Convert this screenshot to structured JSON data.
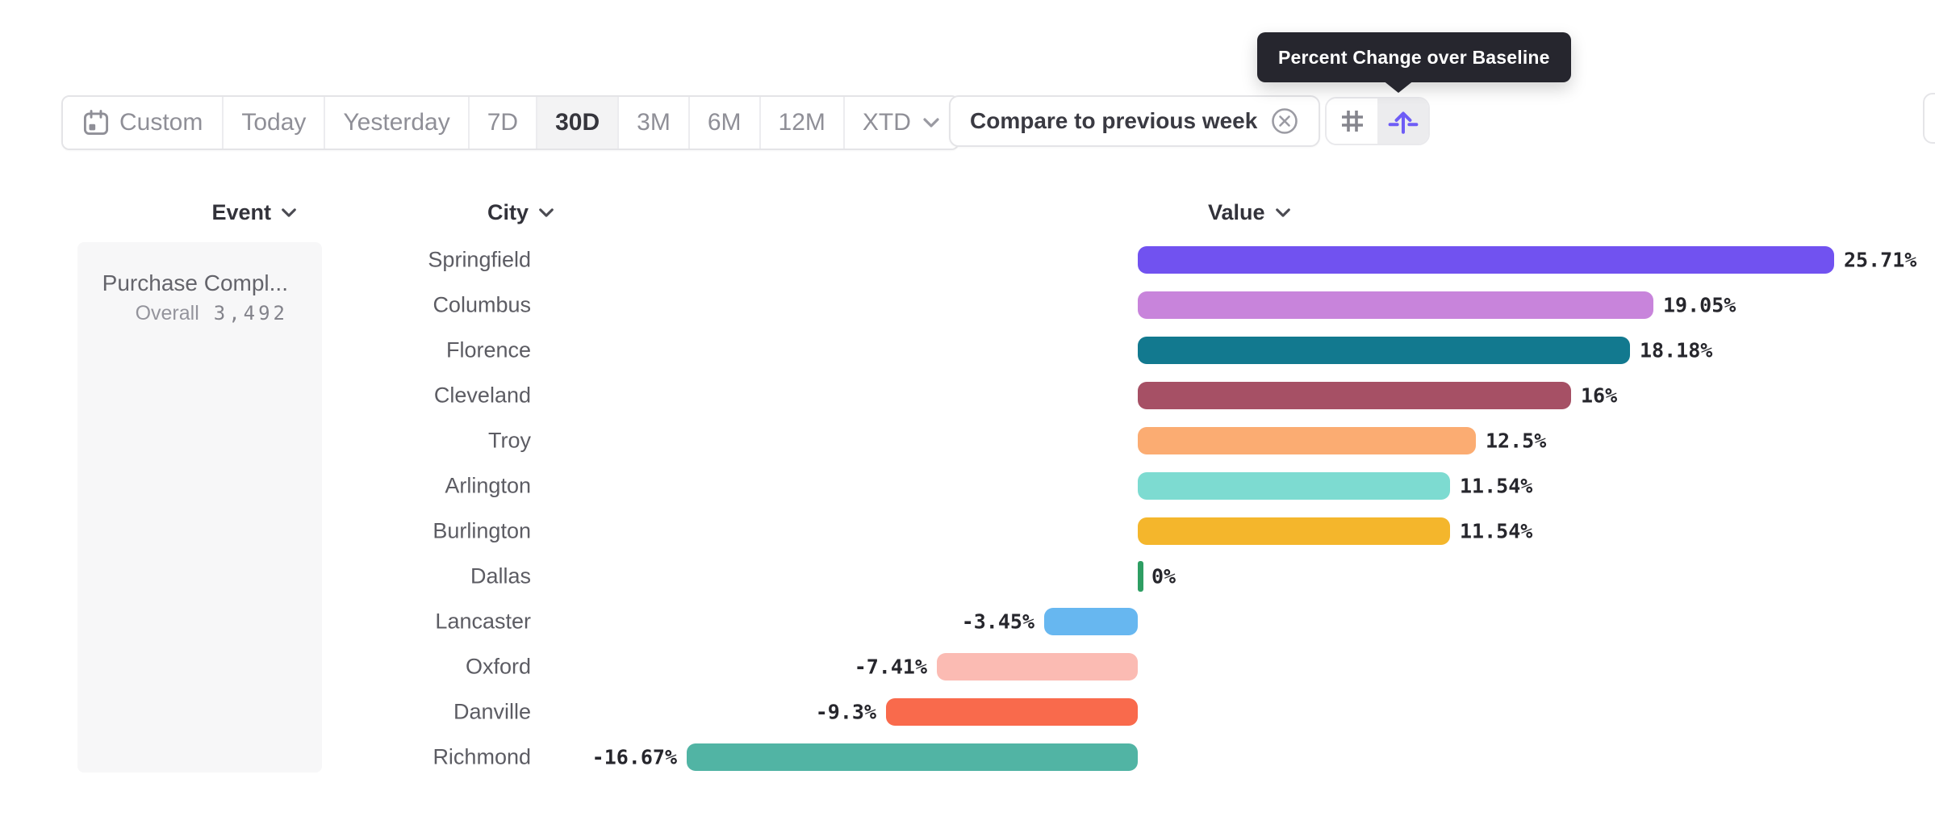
{
  "tooltip": {
    "text": "Percent Change over Baseline"
  },
  "toolbar": {
    "date_ranges": [
      {
        "label": "Custom",
        "icon": "calendar-icon",
        "selected": false,
        "chevron": false
      },
      {
        "label": "Today",
        "selected": false,
        "chevron": false
      },
      {
        "label": "Yesterday",
        "selected": false,
        "chevron": false
      },
      {
        "label": "7D",
        "selected": false,
        "chevron": false
      },
      {
        "label": "30D",
        "selected": true,
        "chevron": false
      },
      {
        "label": "3M",
        "selected": false,
        "chevron": false
      },
      {
        "label": "6M",
        "selected": false,
        "chevron": false
      },
      {
        "label": "12M",
        "selected": false,
        "chevron": false
      },
      {
        "label": "XTD",
        "selected": false,
        "chevron": true
      }
    ],
    "compare_label": "Compare to previous week",
    "compare_remove_icon": "x-circle-icon",
    "view_toggle": {
      "absolute_icon": "hash-icon",
      "baseline_icon": "arrow-up-baseline-icon",
      "selected": "baseline"
    }
  },
  "columns": {
    "event": "Event",
    "city": "City",
    "value": "Value"
  },
  "event_panel": {
    "event_name": "Purchase Compl...",
    "overall_label": "Overall",
    "overall_value": "3,492"
  },
  "chart_data": {
    "type": "bar",
    "orientation": "horizontal",
    "title": "Percent Change over Baseline",
    "unit": "%",
    "categories": [
      "Springfield",
      "Columbus",
      "Florence",
      "Cleveland",
      "Troy",
      "Arlington",
      "Burlington",
      "Dallas",
      "Lancaster",
      "Oxford",
      "Danville",
      "Richmond"
    ],
    "values": [
      25.71,
      19.05,
      18.18,
      16,
      12.5,
      11.54,
      11.54,
      0,
      -3.45,
      -7.41,
      -9.3,
      -16.67
    ],
    "labels": [
      "25.71%",
      "19.05%",
      "18.18%",
      "16%",
      "12.5%",
      "11.54%",
      "11.54%",
      "0%",
      "-3.45%",
      "-7.41%",
      "-9.3%",
      "-16.67%"
    ],
    "colors": [
      "#7152F0",
      "#C884DB",
      "#12798F",
      "#A65065",
      "#FBAC72",
      "#7DDBD1",
      "#F4B62C",
      "#2E9E63",
      "#67B7F0",
      "#FBBBB3",
      "#F96A4C",
      "#51B4A4"
    ],
    "xlim": [
      -16.67,
      25.71
    ],
    "grid": false,
    "legend": false
  },
  "colors": {
    "tooltip_bg": "#26262e",
    "accent_purple": "#6E5CF6",
    "panel_bg": "#f7f7f8",
    "selected_segment_bg": "#f3f3f4",
    "muted_text": "#8f8f97",
    "dark_text": "#32323a"
  }
}
